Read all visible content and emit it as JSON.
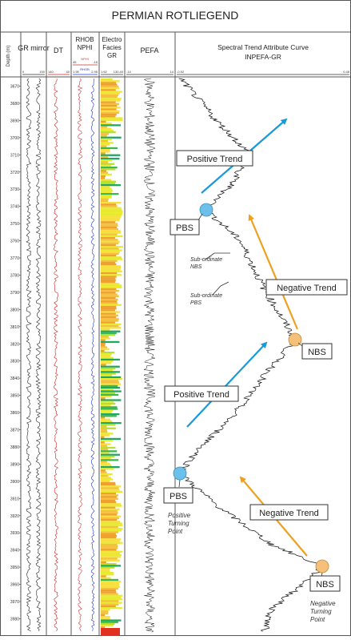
{
  "title": "PERMIAN ROTLIEGEND",
  "tracks": {
    "depth_header": "Depth (m)",
    "gr_label": "GR mirror",
    "dt_label": "DT",
    "rhob_label": "RHOB",
    "nphi_label": "NPHI",
    "nphi_curve": "NPHI",
    "rhob_curve": "RHOB",
    "ef_label_1": "Electro",
    "ef_label_2": "Facies",
    "ef_label_3": "GR",
    "pefa_label": "PEFA",
    "spectral_label_1": "Spectral Trend Attribute Curve",
    "spectral_label_2": "INPEFA-GR"
  },
  "scales": {
    "gr_left": "0",
    "gr_right": "150",
    "dt_left": "140",
    "dt_right": "40",
    "nphi_left": "45",
    "nphi_right": "-15",
    "rhob_left": "1.95",
    "rhob_right": "2.95",
    "ef_left": "1.62",
    "ef_right": "130.40",
    "pefa_left": "-14",
    "pefa_right": "14",
    "inpefa_left": "-0.52",
    "inpefa_right": "0.48"
  },
  "depth_ticks": [
    "3670",
    "3680",
    "3690",
    "3700",
    "3710",
    "3720",
    "3730",
    "3740",
    "3750",
    "3760",
    "3770",
    "3780",
    "3790",
    "3800",
    "3810",
    "3820",
    "3830",
    "3840",
    "3850",
    "3860",
    "3870",
    "3880",
    "3890",
    "3900",
    "3910",
    "3920",
    "3930",
    "3940",
    "3950",
    "3960",
    "3970",
    "3980"
  ],
  "annotations": {
    "positive_trend_1": "Positive Trend",
    "negative_trend_1": "Negative Trend",
    "positive_trend_2": "Positive Trend",
    "negative_trend_2": "Negative Trend",
    "pbs_1": "PBS",
    "nbs_1": "NBS",
    "pbs_2": "PBS",
    "nbs_2": "NBS",
    "sub_nbs_1": "Sub-ordinate",
    "sub_nbs_2": "NBS",
    "sub_pbs_1": "Sub-ordinate",
    "sub_pbs_2": "PBS",
    "ptp_1": "Positive",
    "ptp_2": "Turning",
    "ptp_3": "Point",
    "ntp_1": "Negative",
    "ntp_2": "Turning",
    "ntp_3": "Point"
  },
  "colors": {
    "positive_arrow": "#1a9ad6",
    "negative_arrow": "#f0a020",
    "pbs_marker": "#6cc0ea",
    "nbs_marker": "#f5c07a",
    "dt_curve": "#cc2222",
    "nphi_curve": "#cc3333",
    "rhob_curve": "#2233cc"
  }
}
